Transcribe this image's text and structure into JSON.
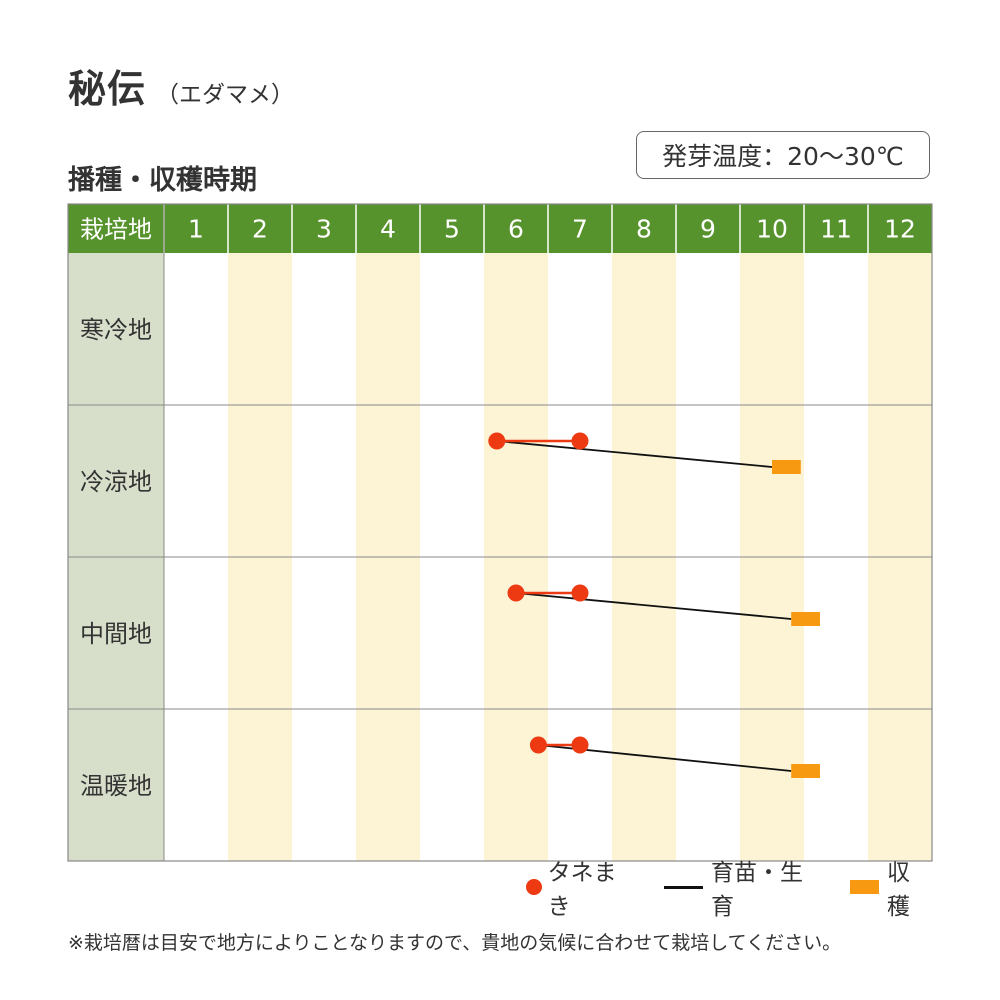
{
  "title": {
    "main": "秘伝",
    "sub": "（エダマメ）"
  },
  "section_title": "播種・収穫時期",
  "temp_info": "発芽温度：20～30℃",
  "colors": {
    "header_green": "#56932d",
    "region_bg": "#d7dfca",
    "stripe": "#fdf4d6",
    "sowing": "#ee3a12",
    "harvest": "#f79a12",
    "growing": "#111111"
  },
  "chart_data": {
    "type": "gantt",
    "header_label": "栽培地",
    "months": [
      "1",
      "2",
      "3",
      "4",
      "5",
      "6",
      "7",
      "8",
      "9",
      "10",
      "11",
      "12"
    ],
    "rows": [
      {
        "region": "寒冷地",
        "sowing": null,
        "harvest": null
      },
      {
        "region": "冷涼地",
        "sowing": [
          6.2,
          7.5
        ],
        "harvest": [
          10.5,
          10.95
        ]
      },
      {
        "region": "中間地",
        "sowing": [
          6.5,
          7.5
        ],
        "harvest": [
          10.8,
          11.25
        ]
      },
      {
        "region": "温暖地",
        "sowing": [
          6.85,
          7.5
        ],
        "harvest": [
          10.8,
          11.25
        ]
      }
    ],
    "legend": {
      "sowing": "タネまき",
      "growing": "育苗・生育",
      "harvest": "収穫"
    }
  },
  "footnote": "※栽培暦は目安で地方によりことなりますので、貴地の気候に合わせて栽培してください。"
}
